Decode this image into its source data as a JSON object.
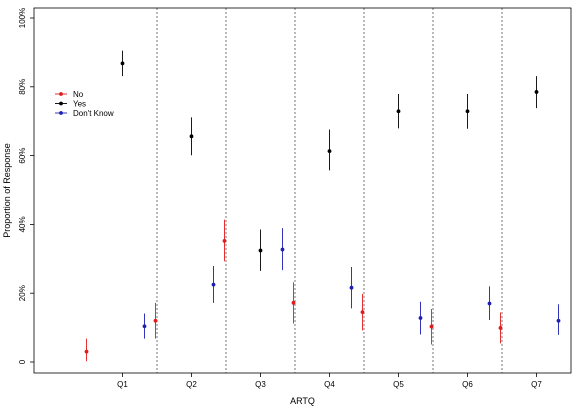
{
  "chart_data": {
    "type": "scatter",
    "subtype": "point-with-error-bars",
    "xlabel": "ARTQ",
    "ylabel": "Proportion of Response",
    "categories": [
      "Q1",
      "Q2",
      "Q3",
      "Q4",
      "Q5",
      "Q6",
      "Q7"
    ],
    "y_ticks": [
      {
        "value": 0,
        "label": "0"
      },
      {
        "value": 20,
        "label": "20%"
      },
      {
        "value": 40,
        "label": "40%"
      },
      {
        "value": 60,
        "label": "60%"
      },
      {
        "value": 80,
        "label": "80%"
      },
      {
        "value": 100,
        "label": "100%"
      }
    ],
    "ylim": [
      0,
      100
    ],
    "grid": false,
    "category_dividers": "dotted vertical lines between categories",
    "legend_position": "top-left",
    "series": [
      {
        "name": "No",
        "color": "#e41a1c",
        "values": [
          3.0,
          12.0,
          35.2,
          17.2,
          14.5,
          10.3,
          9.9
        ],
        "lower": [
          0.2,
          6.8,
          29.3,
          11.2,
          9.2,
          5.1,
          5.4
        ],
        "upper": [
          6.8,
          17.2,
          41.4,
          23.2,
          19.8,
          15.4,
          14.4
        ]
      },
      {
        "name": "Yes",
        "color": "#000000",
        "values": [
          86.8,
          65.6,
          32.4,
          61.3,
          72.9,
          72.9,
          78.5
        ],
        "lower": [
          83.1,
          60.1,
          26.5,
          55.7,
          67.9,
          67.8,
          73.8
        ],
        "upper": [
          90.5,
          71.1,
          38.5,
          67.6,
          77.9,
          77.9,
          83.1
        ]
      },
      {
        "name": "Don't Know",
        "color": "#1f1fb4",
        "values": [
          10.4,
          22.5,
          32.7,
          21.6,
          12.8,
          17.0,
          12.0
        ],
        "lower": [
          6.8,
          17.2,
          26.7,
          15.6,
          8.0,
          12.2,
          7.9
        ],
        "upper": [
          14.1,
          27.9,
          38.9,
          27.6,
          17.5,
          22.0,
          16.8
        ]
      }
    ]
  }
}
